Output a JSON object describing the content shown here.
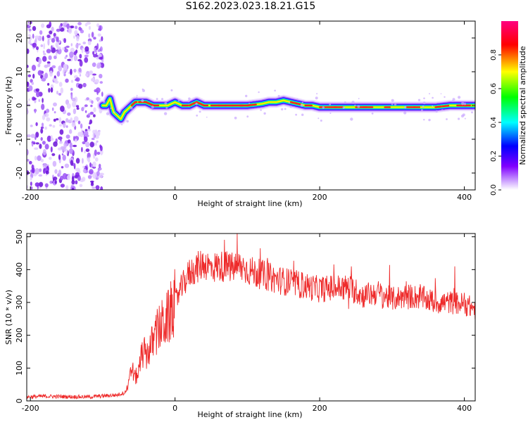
{
  "title": "S162.2023.023.18.21.G15",
  "chart_data": [
    {
      "type": "heatmap",
      "xlabel": "Height of straight line (km)",
      "ylabel": "Frequency (Hz)",
      "xlim": [
        -205,
        415
      ],
      "ylim": [
        -25,
        25
      ],
      "xticks": [
        -200,
        0,
        200,
        400
      ],
      "yticks": [
        -20,
        -10,
        0,
        10,
        20
      ],
      "colorbar": {
        "label": "Normalized spectral amplitude",
        "range": [
          0,
          1
        ],
        "ticks": [
          0.0,
          0.2,
          0.4,
          0.6,
          0.8
        ],
        "colors": [
          "#ffffff",
          "#8000ff",
          "#0000ff",
          "#00ffff",
          "#00ff00",
          "#ffff00",
          "#ff0000",
          "#ff0080"
        ]
      },
      "noise_region": {
        "x": [
          -205,
          -100
        ],
        "y": [
          -25,
          25
        ]
      },
      "ridge": {
        "x": [
          -100,
          -95,
          -90,
          -85,
          -80,
          -75,
          -70,
          -65,
          -60,
          -55,
          -50,
          -45,
          -40,
          -30,
          -20,
          -10,
          0,
          10,
          20,
          30,
          40,
          50,
          60,
          80,
          100,
          120,
          130,
          140,
          150,
          160,
          170,
          180,
          190,
          200,
          220,
          240,
          260,
          280,
          300,
          320,
          340,
          360,
          380,
          400,
          415
        ],
        "y": [
          0,
          0,
          2,
          -2,
          -3,
          -4,
          -2,
          -1,
          0,
          1,
          1,
          1,
          1,
          0,
          0,
          0,
          1,
          0,
          0,
          1,
          0,
          0,
          0,
          0,
          0,
          0.5,
          1,
          1,
          1.5,
          1,
          0.5,
          0,
          0,
          -0.5,
          -0.5,
          -0.5,
          -0.5,
          -0.5,
          -0.5,
          -0.5,
          -0.5,
          -0.5,
          0,
          0,
          0
        ]
      }
    },
    {
      "type": "line",
      "xlabel": "Height of straight line (km)",
      "ylabel": "SNR (10 * v/v)",
      "xlim": [
        -205,
        415
      ],
      "ylim": [
        0,
        510
      ],
      "xticks": [
        -200,
        0,
        200,
        400
      ],
      "yticks": [
        0,
        100,
        200,
        300,
        400,
        500
      ],
      "color": "#ee2a2a",
      "series": [
        {
          "x": [
            -205,
            -180,
            -150,
            -120,
            -100,
            -80,
            -70,
            -65,
            -60,
            -55,
            -50,
            -45,
            -40,
            -35,
            -30,
            -25,
            -20,
            -15,
            -10,
            -5,
            0,
            10,
            20,
            30,
            40,
            50,
            60,
            70,
            80,
            90,
            100,
            110,
            120,
            140,
            160,
            180,
            200,
            220,
            240,
            260,
            280,
            300,
            320,
            340,
            360,
            380,
            400,
            415
          ],
          "y": [
            12,
            14,
            13,
            12,
            15,
            18,
            25,
            40,
            100,
            70,
            90,
            150,
            140,
            160,
            180,
            210,
            225,
            240,
            250,
            275,
            300,
            350,
            390,
            405,
            420,
            405,
            410,
            410,
            405,
            410,
            400,
            390,
            385,
            370,
            360,
            350,
            340,
            345,
            345,
            320,
            330,
            310,
            320,
            315,
            300,
            300,
            295,
            280
          ]
        }
      ]
    }
  ]
}
